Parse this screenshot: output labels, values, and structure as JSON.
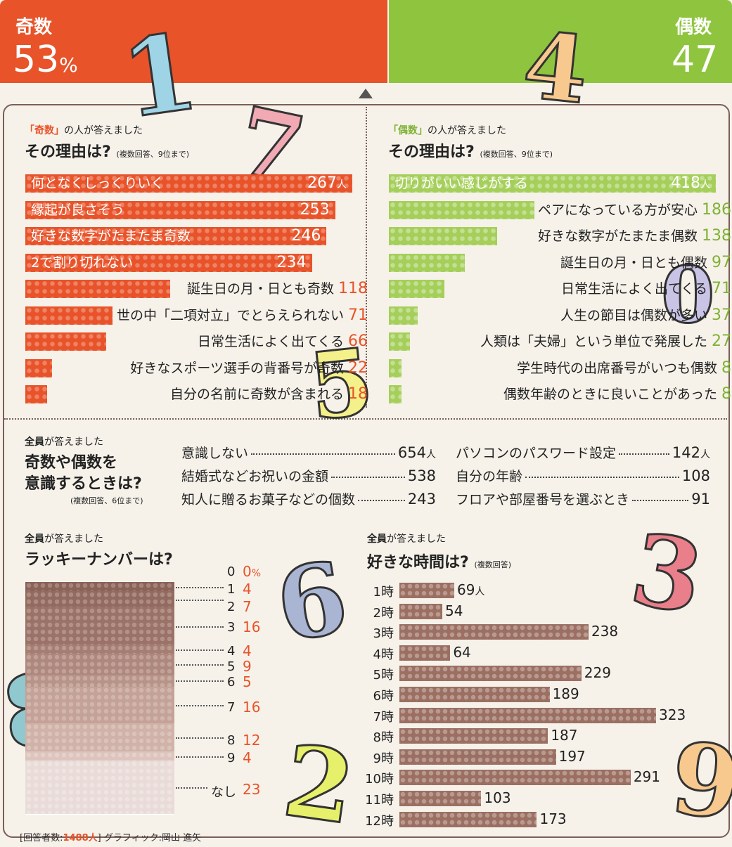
{
  "header": {
    "odd_label": "奇数",
    "odd_pct": "53",
    "odd_unit": "%",
    "even_label": "偶数",
    "even_pct": "47"
  },
  "odd_reasons": {
    "who_prefix": "「奇数」",
    "who_suffix": "の人が答えました",
    "question": "その理由は?",
    "note": "(複数回答、9位まで)",
    "unit": "人"
  },
  "even_reasons": {
    "who_prefix": "「偶数」",
    "who_suffix": "の人が答えました",
    "question": "その理由は?",
    "note": "(複数回答、9位まで)",
    "unit": "人"
  },
  "all_aware": {
    "who_prefix": "全員",
    "who_suffix": "が答えました",
    "question_line1": "奇数や偶数を",
    "question_line2": "意識するときは?",
    "note": "(複数回答、6位まで)",
    "unit": "人"
  },
  "lucky": {
    "who_prefix": "全員",
    "who_suffix": "が答えました",
    "question": "ラッキーナンバーは?",
    "unit": "%"
  },
  "times": {
    "who_prefix": "全員",
    "who_suffix": "が答えました",
    "question": "好きな時間は?",
    "note": "(複数回答)",
    "unit": "人"
  },
  "footer": {
    "respondents_label": "[回答者数:",
    "respondents_value": "1488人",
    "respondents_close": "]",
    "credit": "グラフィック:岡山 進矢"
  },
  "colors": {
    "odd": "#e8532a",
    "even": "#8fc43f",
    "brown": "#9b6f62"
  },
  "chart_data": [
    {
      "type": "bar",
      "categories": [
        "何となくしっくりいく",
        "縁起が良さそう",
        "好きな数字がたまたま奇数",
        "2で割り切れない",
        "誕生日の月・日とも奇数",
        "世の中「二項対立」でとらえられない",
        "日常生活によく出てくる",
        "好きなスポーツ選手の背番号が奇数",
        "自分の名前に奇数が含まれる"
      ],
      "values": [
        267,
        253,
        246,
        234,
        118,
        71,
        66,
        22,
        18
      ]
    },
    {
      "type": "bar",
      "categories": [
        "切りがいい感じがする",
        "ペアになっている方が安心",
        "好きな数字がたまたま偶数",
        "誕生日の月・日とも偶数",
        "日常生活によく出てくる",
        "人生の節目は偶数が多い",
        "人類は「夫婦」という単位で発展した",
        "学生時代の出席番号がいつも偶数",
        "偶数年齢のときに良いことがあった"
      ],
      "values": [
        418,
        186,
        138,
        97,
        71,
        37,
        27,
        8,
        8
      ]
    },
    {
      "type": "table",
      "categories": [
        "意識しない",
        "結婚式などお祝いの金額",
        "知人に贈るお菓子などの個数",
        "パソコンのパスワード設定",
        "自分の年齢",
        "フロアや部屋番号を選ぶとき"
      ],
      "values": [
        654,
        538,
        243,
        142,
        108,
        91
      ]
    },
    {
      "type": "bar",
      "categories": [
        "0",
        "1",
        "2",
        "3",
        "4",
        "5",
        "6",
        "7",
        "8",
        "9",
        "なし"
      ],
      "values": [
        0,
        4,
        7,
        16,
        4,
        9,
        5,
        16,
        12,
        4,
        23
      ]
    },
    {
      "type": "bar",
      "categories": [
        "1時",
        "2時",
        "3時",
        "4時",
        "5時",
        "6時",
        "7時",
        "8時",
        "9時",
        "10時",
        "11時",
        "12時"
      ],
      "values": [
        69,
        54,
        238,
        64,
        229,
        189,
        323,
        187,
        197,
        291,
        103,
        173
      ]
    }
  ]
}
